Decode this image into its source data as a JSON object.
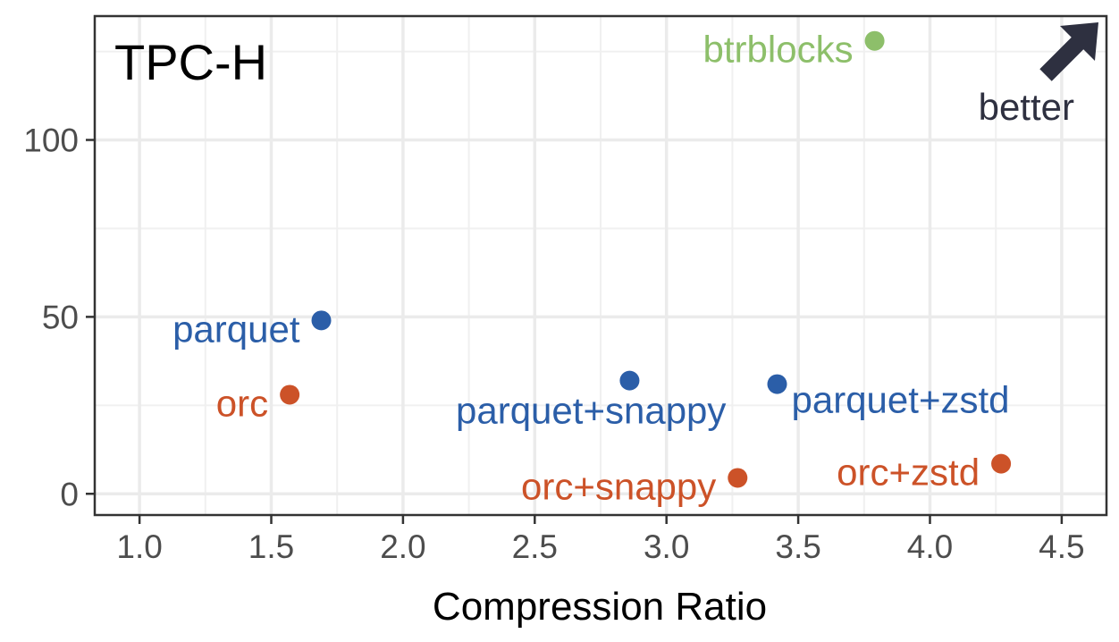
{
  "chart_data": {
    "type": "scatter",
    "title": "TPC-H",
    "xlabel": "Compression Ratio",
    "ylabel": "",
    "xlim": [
      0.83,
      4.67
    ],
    "ylim": [
      -6,
      135
    ],
    "x_ticks": [
      "1.0",
      "1.5",
      "2.0",
      "2.5",
      "3.0",
      "3.5",
      "4.0",
      "4.5"
    ],
    "y_ticks": [
      "0",
      "50",
      "100"
    ],
    "grid": true,
    "points": [
      {
        "label": "btrblocks",
        "x": 3.79,
        "y": 128,
        "color": "#8dbf6a",
        "label_side": "left"
      },
      {
        "label": "parquet",
        "x": 1.69,
        "y": 49,
        "color": "#2b5ea8",
        "label_side": "left"
      },
      {
        "label": "orc",
        "x": 1.57,
        "y": 28,
        "color": "#cc5228",
        "label_side": "left"
      },
      {
        "label": "parquet+snappy",
        "x": 2.86,
        "y": 32,
        "color": "#2b5ea8",
        "label_side": "below-left"
      },
      {
        "label": "parquet+zstd",
        "x": 3.42,
        "y": 31,
        "color": "#2b5ea8",
        "label_side": "right"
      },
      {
        "label": "orc+snappy",
        "x": 3.27,
        "y": 4.5,
        "color": "#cc5228",
        "label_side": "left"
      },
      {
        "label": "orc+zstd",
        "x": 4.27,
        "y": 8.5,
        "color": "#cc5228",
        "label_side": "left"
      }
    ],
    "annotation": {
      "text": "better",
      "color": "#2e3040"
    }
  }
}
